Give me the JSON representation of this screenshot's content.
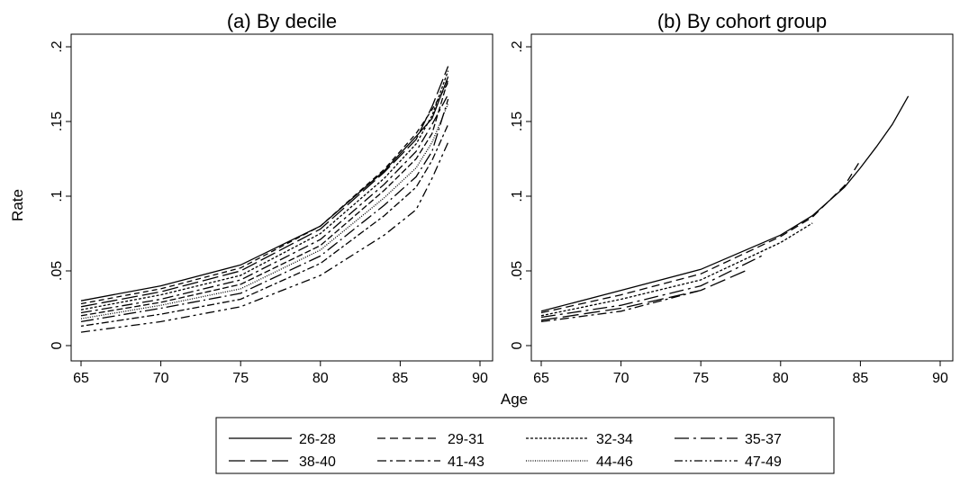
{
  "figure": {
    "shared_ylabel": "Rate",
    "shared_xlabel": "Age"
  },
  "legend": {
    "entries": [
      {
        "label": "26-28",
        "dash": "none"
      },
      {
        "label": "29-31",
        "dash": "9,5"
      },
      {
        "label": "32-34",
        "dash": "3,2"
      },
      {
        "label": "35-37",
        "dash": "16,5,3,5"
      },
      {
        "label": "38-40",
        "dash": "18,6"
      },
      {
        "label": "41-43",
        "dash": "10,4,3,4"
      },
      {
        "label": "44-46",
        "dash": "1,1.5"
      },
      {
        "label": "47-49",
        "dash": "9,3,2,3,2,3"
      }
    ]
  },
  "chart_data": [
    {
      "type": "line",
      "title": "(a) By decile",
      "xlabel": "",
      "ylabel": "Rate",
      "xlim": [
        65,
        90
      ],
      "ylim": [
        0,
        0.2
      ],
      "xticks": [
        "65",
        "70",
        "75",
        "80",
        "85",
        "90"
      ],
      "yticks": [
        "0",
        ".05",
        ".1",
        ".15",
        ".2"
      ],
      "grid": false,
      "x": [
        65,
        70,
        75,
        80,
        84,
        86,
        87,
        88
      ],
      "series": [
        {
          "values": [
            0.03,
            0.04,
            0.054,
            0.08,
            0.117,
            0.14,
            0.152,
            0.18
          ]
        },
        {
          "values": [
            0.028,
            0.038,
            0.052,
            0.08,
            0.118,
            0.142,
            0.158,
            0.176
          ]
        },
        {
          "values": [
            0.026,
            0.036,
            0.05,
            0.078,
            0.116,
            0.138,
            0.16,
            0.187
          ]
        },
        {
          "values": [
            0.024,
            0.034,
            0.047,
            0.075,
            0.112,
            0.135,
            0.154,
            0.184
          ]
        },
        {
          "values": [
            0.022,
            0.031,
            0.044,
            0.071,
            0.108,
            0.13,
            0.148,
            0.168
          ]
        },
        {
          "values": [
            0.02,
            0.029,
            0.041,
            0.067,
            0.104,
            0.125,
            0.142,
            0.178
          ]
        },
        {
          "values": [
            0.018,
            0.027,
            0.038,
            0.064,
            0.099,
            0.119,
            0.136,
            0.162
          ]
        },
        {
          "values": [
            0.016,
            0.025,
            0.035,
            0.06,
            0.094,
            0.113,
            0.13,
            0.165
          ]
        },
        {
          "values": [
            0.013,
            0.021,
            0.031,
            0.055,
            0.087,
            0.106,
            0.124,
            0.148
          ]
        },
        {
          "values": [
            0.009,
            0.016,
            0.026,
            0.047,
            0.074,
            0.091,
            0.112,
            0.136
          ]
        }
      ]
    },
    {
      "type": "line",
      "title": "(b) By cohort group",
      "xlabel": "",
      "ylabel": "",
      "xlim": [
        65,
        90
      ],
      "ylim": [
        0,
        0.2
      ],
      "xticks": [
        "65",
        "70",
        "75",
        "80",
        "85",
        "90"
      ],
      "yticks": [
        "0",
        ".05",
        ".1",
        ".15",
        ".2"
      ],
      "grid": false,
      "series": [
        {
          "name": "26-28",
          "x": [
            65,
            70,
            75,
            80,
            82,
            84,
            85,
            86,
            87,
            88
          ],
          "values": [
            0.023,
            0.037,
            0.051,
            0.074,
            0.087,
            0.106,
            0.119,
            0.133,
            0.148,
            0.167
          ]
        },
        {
          "name": "29-31",
          "x": [
            65,
            70,
            75,
            80,
            82,
            84,
            85
          ],
          "values": [
            0.022,
            0.034,
            0.048,
            0.073,
            0.086,
            0.107,
            0.124
          ]
        },
        {
          "name": "32-34",
          "x": [
            65,
            70,
            75,
            80,
            82
          ],
          "values": [
            0.02,
            0.031,
            0.044,
            0.069,
            0.082
          ]
        },
        {
          "name": "35-37",
          "x": [
            65,
            70,
            75,
            79
          ],
          "values": [
            0.019,
            0.027,
            0.04,
            0.061
          ]
        },
        {
          "name": "38-40",
          "x": [
            65,
            70,
            75,
            78
          ],
          "values": [
            0.017,
            0.025,
            0.037,
            0.051
          ]
        },
        {
          "name": "41-43",
          "x": [
            65,
            70,
            75
          ],
          "values": [
            0.016,
            0.023,
            0.037
          ]
        }
      ]
    }
  ]
}
